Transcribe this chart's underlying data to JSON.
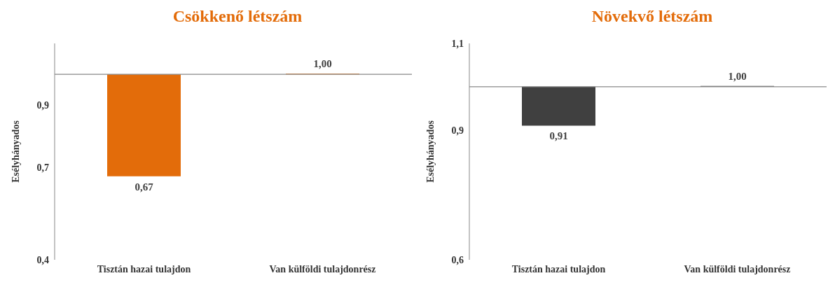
{
  "chart_data": [
    {
      "type": "bar",
      "title": "Csökkenő létszám",
      "ylabel": "Esélyhányados",
      "categories": [
        "Tisztán hazai tulajdon",
        "Van külföldi tulajdonrész"
      ],
      "base": [
        1,
        1
      ],
      "values": [
        -0.33,
        0
      ],
      "color": "#e36c0a",
      "value_labels": [
        "0,67",
        "1,00"
      ],
      "ylim": [
        0.4,
        1.1
      ],
      "yticks": [
        {
          "value": 0.4,
          "label": "0,4"
        },
        {
          "value": 0.7,
          "label": "0,7"
        },
        {
          "value": 0.9,
          "label": "0,9"
        }
      ],
      "ref_lines": [
        {
          "axis": "y",
          "value": 1
        }
      ],
      "grid": false,
      "legend": false
    },
    {
      "type": "bar",
      "title": "Növekvő létszám",
      "ylabel": "Esélyhányados",
      "categories": [
        "Tisztán hazai tulajdon",
        "Van külföldi tulajdonrész"
      ],
      "base": [
        1,
        1
      ],
      "values": [
        -0.09,
        0
      ],
      "color": "#404040",
      "value_labels": [
        "0,91",
        "1,00"
      ],
      "ylim": [
        0.6,
        1.1
      ],
      "yticks": [
        {
          "value": 0.6,
          "label": "0,6"
        },
        {
          "value": 0.9,
          "label": "0,9"
        },
        {
          "value": 1.1,
          "label": "1,1"
        }
      ],
      "ref_lines": [
        {
          "axis": "y",
          "value": 1
        }
      ],
      "grid": false,
      "legend": false
    }
  ]
}
